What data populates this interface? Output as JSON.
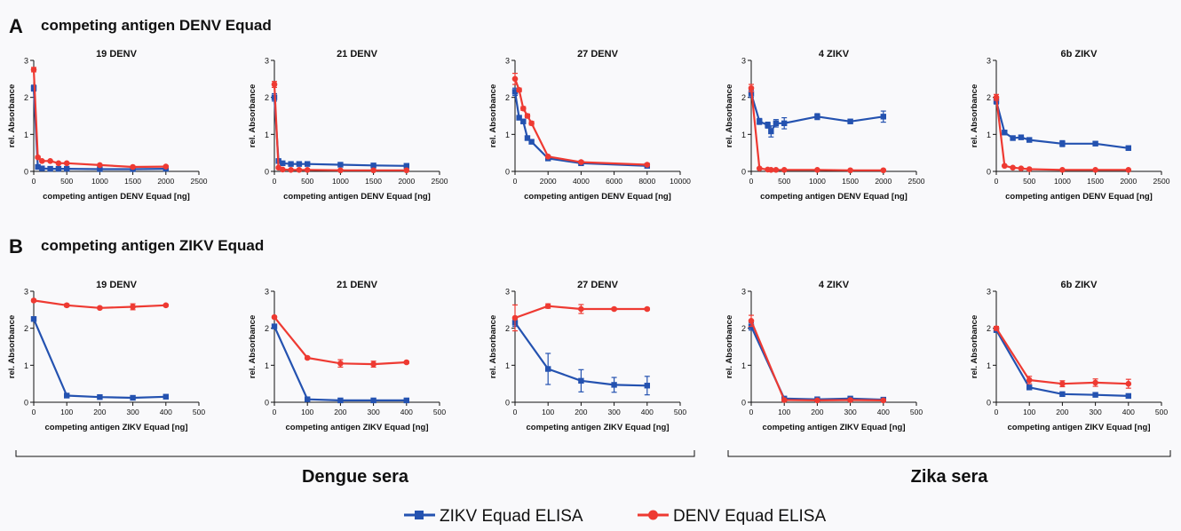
{
  "panel_a": {
    "letter": "A",
    "title": "competing antigen DENV Equad"
  },
  "panel_b": {
    "letter": "B",
    "title": "competing antigen ZIKV Equad"
  },
  "groups": {
    "dengue": "Dengue sera",
    "zika": "Zika sera"
  },
  "legend": {
    "zikv": {
      "label": "ZIKV Equad ELISA",
      "color": "#2452b0"
    },
    "denv": {
      "label": "DENV Equad ELISA",
      "color": "#ee3a32"
    }
  },
  "colors": {
    "zikv": "#2452b0",
    "denv": "#ee3a32",
    "axis": "#111111"
  },
  "chart_data": [
    {
      "type": "line",
      "panel": "A",
      "title": "19 DENV",
      "xlabel": "competing antigen DENV Equad [ng]",
      "ylabel": "rel. Absorbance",
      "xlim": [
        0,
        2500
      ],
      "ylim": [
        0,
        3
      ],
      "xticks": [
        "0",
        "500",
        "1000",
        "1500",
        "2000",
        "2500"
      ],
      "yticks": [
        "0",
        "1",
        "2",
        "3"
      ],
      "series": [
        {
          "name": "ZIKV Equad ELISA",
          "x": [
            0,
            62.5,
            125,
            250,
            375,
            500,
            1000,
            1500,
            2000
          ],
          "y": [
            2.25,
            0.12,
            0.08,
            0.07,
            0.07,
            0.07,
            0.06,
            0.06,
            0.07
          ],
          "err": [
            0.08,
            0.02,
            0.01,
            0.01,
            0.01,
            0.01,
            0.01,
            0.01,
            0.01
          ]
        },
        {
          "name": "DENV Equad ELISA",
          "x": [
            0,
            62.5,
            125,
            250,
            375,
            500,
            1000,
            1500,
            2000
          ],
          "y": [
            2.75,
            0.38,
            0.28,
            0.28,
            0.22,
            0.22,
            0.17,
            0.12,
            0.13
          ],
          "err": [
            0.06,
            0.03,
            0.02,
            0.02,
            0.02,
            0.02,
            0.02,
            0.02,
            0.02
          ]
        }
      ]
    },
    {
      "type": "line",
      "panel": "A",
      "title": "21 DENV",
      "xlabel": "competing antigen DENV Equad [ng]",
      "ylabel": "rel. Absorbance",
      "xlim": [
        0,
        2500
      ],
      "ylim": [
        0,
        3
      ],
      "xticks": [
        "0",
        "500",
        "1000",
        "1500",
        "2000",
        "2500"
      ],
      "yticks": [
        "0",
        "1",
        "2",
        "3"
      ],
      "series": [
        {
          "name": "ZIKV Equad ELISA",
          "x": [
            0,
            62.5,
            125,
            250,
            375,
            500,
            1000,
            1500,
            2000
          ],
          "y": [
            2.0,
            0.28,
            0.22,
            0.2,
            0.2,
            0.2,
            0.18,
            0.16,
            0.15
          ],
          "err": [
            0.1,
            0.02,
            0.02,
            0.02,
            0.02,
            0.02,
            0.02,
            0.02,
            0.02
          ]
        },
        {
          "name": "DENV Equad ELISA",
          "x": [
            0,
            62.5,
            125,
            250,
            375,
            500,
            1000,
            1500,
            2000
          ],
          "y": [
            2.35,
            0.1,
            0.05,
            0.04,
            0.04,
            0.04,
            0.03,
            0.03,
            0.03
          ],
          "err": [
            0.08,
            0.02,
            0.01,
            0.01,
            0.01,
            0.01,
            0.01,
            0.01,
            0.01
          ]
        }
      ]
    },
    {
      "type": "line",
      "panel": "A",
      "title": "27 DENV",
      "xlabel": "competing antigen DENV Equad [ng]",
      "ylabel": "rel. Absorbance",
      "xlim": [
        0,
        10000
      ],
      "ylim": [
        0,
        3
      ],
      "xticks": [
        "0",
        "2000",
        "4000",
        "6000",
        "8000",
        "10000"
      ],
      "yticks": [
        "0",
        "1",
        "2",
        "3"
      ],
      "series": [
        {
          "name": "ZIKV Equad ELISA",
          "x": [
            0,
            250,
            500,
            750,
            1000,
            2000,
            4000,
            8000
          ],
          "y": [
            2.15,
            1.45,
            1.35,
            0.9,
            0.8,
            0.35,
            0.22,
            0.15
          ],
          "err": [
            0.1,
            0.05,
            0.05,
            0.05,
            0.05,
            0.03,
            0.02,
            0.02
          ]
        },
        {
          "name": "DENV Equad ELISA",
          "x": [
            0,
            250,
            500,
            750,
            1000,
            2000,
            4000,
            8000
          ],
          "y": [
            2.5,
            2.2,
            1.7,
            1.5,
            1.3,
            0.4,
            0.25,
            0.18
          ],
          "err": [
            0.15,
            0.05,
            0.05,
            0.05,
            0.05,
            0.03,
            0.02,
            0.02
          ]
        }
      ]
    },
    {
      "type": "line",
      "panel": "A",
      "title": "4 ZIKV",
      "xlabel": "competing antigen DENV Equad [ng]",
      "ylabel": "rel. Absorbance",
      "xlim": [
        0,
        2500
      ],
      "ylim": [
        0,
        3
      ],
      "xticks": [
        "0",
        "500",
        "1000",
        "1500",
        "2000",
        "2500"
      ],
      "yticks": [
        "0",
        "1",
        "2",
        "3"
      ],
      "series": [
        {
          "name": "ZIKV Equad ELISA",
          "x": [
            0,
            125,
            250,
            300,
            375,
            500,
            1000,
            1500,
            2000
          ],
          "y": [
            2.1,
            1.35,
            1.25,
            1.08,
            1.3,
            1.3,
            1.48,
            1.35,
            1.48
          ],
          "err": [
            0.1,
            0.08,
            0.08,
            0.15,
            0.1,
            0.15,
            0.08,
            0.05,
            0.15
          ]
        },
        {
          "name": "DENV Equad ELISA",
          "x": [
            0,
            125,
            250,
            300,
            375,
            500,
            1000,
            1500,
            2000
          ],
          "y": [
            2.25,
            0.08,
            0.05,
            0.04,
            0.04,
            0.04,
            0.04,
            0.03,
            0.03
          ],
          "err": [
            0.1,
            0.02,
            0.01,
            0.01,
            0.01,
            0.01,
            0.01,
            0.01,
            0.01
          ]
        }
      ]
    },
    {
      "type": "line",
      "panel": "A",
      "title": "6b ZIKV",
      "xlabel": "competing antigen DENV Equad [ng]",
      "ylabel": "rel. Absorbance",
      "xlim": [
        0,
        2500
      ],
      "ylim": [
        0,
        3
      ],
      "xticks": [
        "0",
        "500",
        "1000",
        "1500",
        "2000",
        "2500"
      ],
      "yticks": [
        "0",
        "1",
        "2",
        "3"
      ],
      "series": [
        {
          "name": "ZIKV Equad ELISA",
          "x": [
            0,
            125,
            250,
            375,
            500,
            1000,
            1500,
            2000
          ],
          "y": [
            1.9,
            1.05,
            0.9,
            0.92,
            0.85,
            0.75,
            0.75,
            0.63
          ],
          "err": [
            0.08,
            0.05,
            0.05,
            0.05,
            0.05,
            0.08,
            0.05,
            0.05
          ]
        },
        {
          "name": "DENV Equad ELISA",
          "x": [
            0,
            125,
            250,
            375,
            500,
            1000,
            1500,
            2000
          ],
          "y": [
            2.0,
            0.15,
            0.1,
            0.08,
            0.06,
            0.04,
            0.04,
            0.04
          ],
          "err": [
            0.08,
            0.02,
            0.02,
            0.01,
            0.01,
            0.01,
            0.01,
            0.01
          ]
        }
      ]
    },
    {
      "type": "line",
      "panel": "B",
      "title": "19 DENV",
      "xlabel": "competing antigen ZIKV Equad [ng]",
      "ylabel": "rel. Absorbance",
      "xlim": [
        0,
        500
      ],
      "ylim": [
        0,
        3
      ],
      "xticks": [
        "0",
        "100",
        "200",
        "300",
        "400",
        "500"
      ],
      "yticks": [
        "0",
        "1",
        "2",
        "3"
      ],
      "series": [
        {
          "name": "ZIKV Equad ELISA",
          "x": [
            0,
            100,
            200,
            300,
            400
          ],
          "y": [
            2.25,
            0.18,
            0.14,
            0.12,
            0.15
          ],
          "err": [
            0.05,
            0.02,
            0.02,
            0.02,
            0.03
          ]
        },
        {
          "name": "DENV Equad ELISA",
          "x": [
            0,
            100,
            200,
            300,
            400
          ],
          "y": [
            2.75,
            2.62,
            2.55,
            2.58,
            2.62
          ],
          "err": [
            0.03,
            0.04,
            0.03,
            0.08,
            0.03
          ]
        }
      ]
    },
    {
      "type": "line",
      "panel": "B",
      "title": "21 DENV",
      "xlabel": "competing antigen ZIKV Equad [ng]",
      "ylabel": "rel. Absorbance",
      "xlim": [
        0,
        500
      ],
      "ylim": [
        0,
        3
      ],
      "xticks": [
        "0",
        "100",
        "200",
        "300",
        "400",
        "500"
      ],
      "yticks": [
        "0",
        "1",
        "2",
        "3"
      ],
      "series": [
        {
          "name": "ZIKV Equad ELISA",
          "x": [
            0,
            100,
            200,
            300,
            400
          ],
          "y": [
            2.05,
            0.08,
            0.05,
            0.05,
            0.05
          ],
          "err": [
            0.05,
            0.02,
            0.01,
            0.01,
            0.01
          ]
        },
        {
          "name": "DENV Equad ELISA",
          "x": [
            0,
            100,
            200,
            300,
            400
          ],
          "y": [
            2.3,
            1.2,
            1.05,
            1.03,
            1.08
          ],
          "err": [
            0.03,
            0.03,
            0.1,
            0.08,
            0.03
          ]
        }
      ]
    },
    {
      "type": "line",
      "panel": "B",
      "title": "27 DENV",
      "xlabel": "competing antigen ZIKV Equad [ng]",
      "ylabel": "rel. Absorbance",
      "xlim": [
        0,
        500
      ],
      "ylim": [
        0,
        3
      ],
      "xticks": [
        "0",
        "100",
        "200",
        "300",
        "400",
        "500"
      ],
      "yticks": [
        "0",
        "1",
        "2",
        "3"
      ],
      "series": [
        {
          "name": "ZIKV Equad ELISA",
          "x": [
            0,
            100,
            200,
            300,
            400
          ],
          "y": [
            2.15,
            0.9,
            0.58,
            0.47,
            0.45
          ],
          "err": [
            0.1,
            0.42,
            0.3,
            0.2,
            0.25
          ]
        },
        {
          "name": "DENV Equad ELISA",
          "x": [
            0,
            100,
            200,
            300,
            400
          ],
          "y": [
            2.28,
            2.6,
            2.52,
            2.52,
            2.52
          ],
          "err": [
            0.35,
            0.06,
            0.12,
            0.03,
            0.03
          ]
        }
      ]
    },
    {
      "type": "line",
      "panel": "B",
      "title": "4 ZIKV",
      "xlabel": "competing antigen ZIKV Equad [ng]",
      "ylabel": "rel. Absorbance",
      "xlim": [
        0,
        500
      ],
      "ylim": [
        0,
        3
      ],
      "xticks": [
        "0",
        "100",
        "200",
        "300",
        "400",
        "500"
      ],
      "yticks": [
        "0",
        "1",
        "2",
        "3"
      ],
      "series": [
        {
          "name": "ZIKV Equad ELISA",
          "x": [
            0,
            100,
            200,
            300,
            400
          ],
          "y": [
            2.05,
            0.1,
            0.08,
            0.1,
            0.07
          ],
          "err": [
            0.1,
            0.02,
            0.02,
            0.02,
            0.02
          ]
        },
        {
          "name": "DENV Equad ELISA",
          "x": [
            0,
            100,
            200,
            300,
            400
          ],
          "y": [
            2.2,
            0.06,
            0.05,
            0.06,
            0.05
          ],
          "err": [
            0.15,
            0.02,
            0.01,
            0.02,
            0.01
          ]
        }
      ]
    },
    {
      "type": "line",
      "panel": "B",
      "title": "6b ZIKV",
      "xlabel": "competing antigen ZIKV Equad [ng]",
      "ylabel": "rel. Absorbance",
      "xlim": [
        0,
        500
      ],
      "ylim": [
        0,
        3
      ],
      "xticks": [
        "0",
        "100",
        "200",
        "300",
        "400",
        "500"
      ],
      "yticks": [
        "0",
        "1",
        "2",
        "3"
      ],
      "series": [
        {
          "name": "ZIKV Equad ELISA",
          "x": [
            0,
            100,
            200,
            300,
            400
          ],
          "y": [
            1.95,
            0.4,
            0.22,
            0.2,
            0.17
          ],
          "err": [
            0.05,
            0.03,
            0.02,
            0.02,
            0.02
          ]
        },
        {
          "name": "DENV Equad ELISA",
          "x": [
            0,
            100,
            200,
            300,
            400
          ],
          "y": [
            2.0,
            0.6,
            0.5,
            0.53,
            0.5
          ],
          "err": [
            0.05,
            0.1,
            0.08,
            0.1,
            0.12
          ]
        }
      ]
    }
  ]
}
